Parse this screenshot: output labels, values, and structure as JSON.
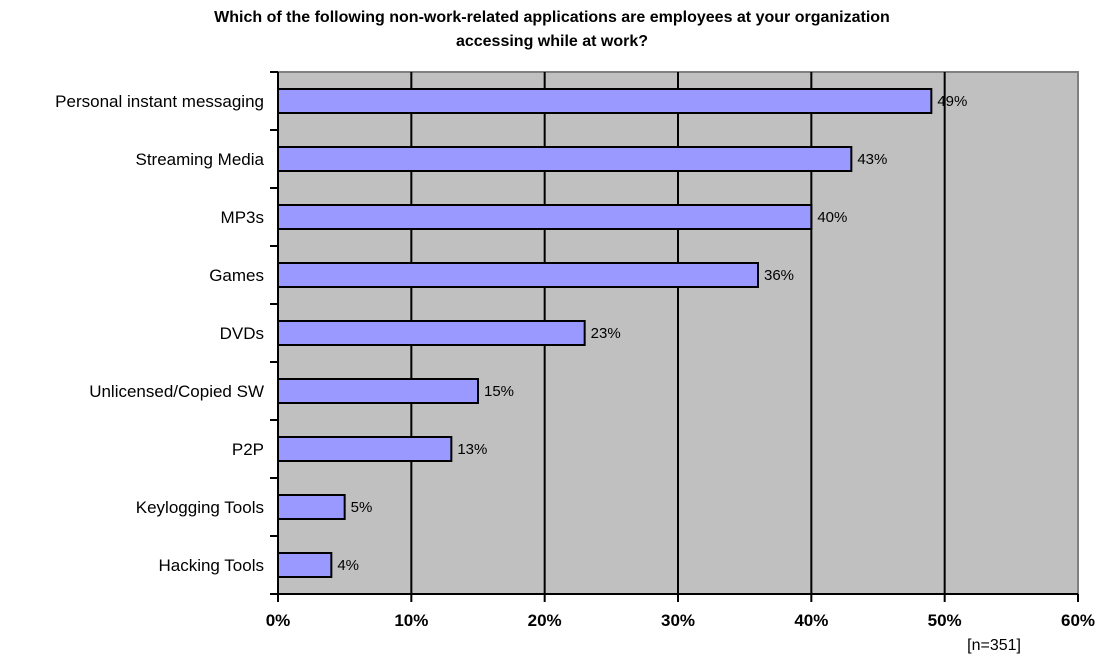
{
  "chart_data": {
    "type": "bar",
    "orientation": "horizontal",
    "title_lines": [
      "Which of the following non-work-related applications are employees at your organization",
      "accessing while at work?"
    ],
    "categories": [
      "Personal instant messaging",
      "Streaming Media",
      "MP3s",
      "Games",
      "DVDs",
      "Unlicensed/Copied SW",
      "P2P",
      "Keylogging Tools",
      "Hacking Tools"
    ],
    "values": [
      49,
      43,
      40,
      36,
      23,
      15,
      13,
      5,
      4
    ],
    "data_labels": [
      "49%",
      "43%",
      "40%",
      "36%",
      "23%",
      "15%",
      "13%",
      "5%",
      "4%"
    ],
    "xlim": [
      0,
      60
    ],
    "x_ticks": [
      0,
      10,
      20,
      30,
      40,
      50,
      60
    ],
    "x_tick_labels": [
      "0%",
      "10%",
      "20%",
      "30%",
      "40%",
      "50%",
      "60%"
    ],
    "grid": true,
    "legend": false,
    "note": "[n=351]",
    "colors": {
      "bar_fill": "#9999ff",
      "bar_stroke": "#000000",
      "plot_background": "#c0c0c0",
      "plot_border": "#808080",
      "gridline": "#000000"
    }
  }
}
